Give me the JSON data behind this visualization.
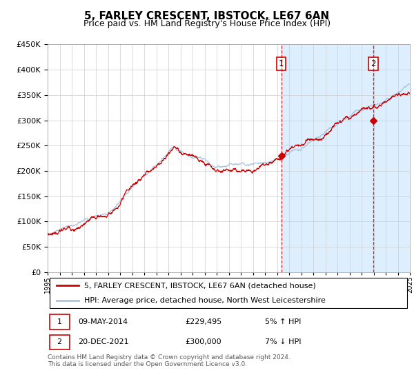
{
  "title": "5, FARLEY CRESCENT, IBSTOCK, LE67 6AN",
  "subtitle": "Price paid vs. HM Land Registry's House Price Index (HPI)",
  "legend_line1": "5, FARLEY CRESCENT, IBSTOCK, LE67 6AN (detached house)",
  "legend_line2": "HPI: Average price, detached house, North West Leicestershire",
  "annotation1_label": "1",
  "annotation1_date": "09-MAY-2014",
  "annotation1_price": "£229,495",
  "annotation1_hpi": "5% ↑ HPI",
  "annotation2_label": "2",
  "annotation2_date": "20-DEC-2021",
  "annotation2_price": "£300,000",
  "annotation2_hpi": "7% ↓ HPI",
  "footer": "Contains HM Land Registry data © Crown copyright and database right 2024.\nThis data is licensed under the Open Government Licence v3.0.",
  "year_start": 1995,
  "year_end": 2025,
  "ymin": 0,
  "ymax": 450000,
  "sale1_year": 2014.35,
  "sale1_value": 229495,
  "sale2_year": 2021.97,
  "sale2_value": 300000,
  "hpi_color": "#aac4e0",
  "price_color": "#cc0000",
  "shade_color": "#ddeeff",
  "grid_color": "#cccccc",
  "bg_color": "#ffffff",
  "title_fontsize": 11,
  "subtitle_fontsize": 9,
  "axis_fontsize": 8,
  "legend_fontsize": 8,
  "ann_fontsize": 8,
  "footer_fontsize": 6.5
}
